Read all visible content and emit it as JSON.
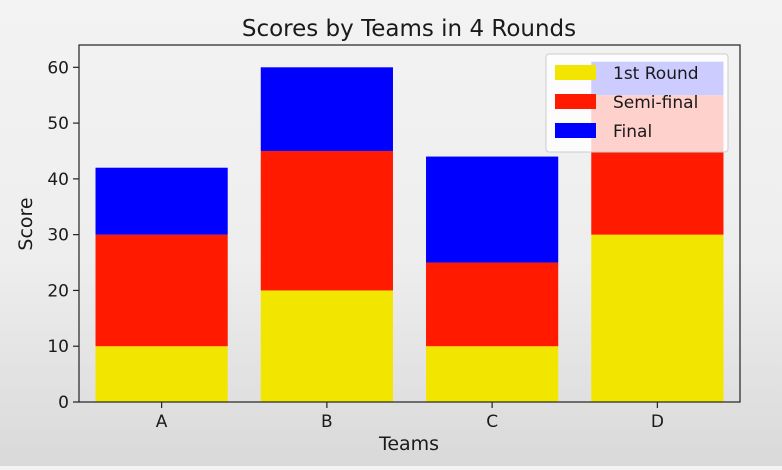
{
  "chart_data": {
    "type": "bar",
    "stacked": true,
    "title": "Scores by Teams in 4 Rounds",
    "xlabel": "Teams",
    "ylabel": "Score",
    "categories": [
      "A",
      "B",
      "C",
      "D"
    ],
    "series": [
      {
        "name": "1st Round",
        "color": "#f2e600",
        "values": [
          10,
          20,
          10,
          30
        ]
      },
      {
        "name": "Semi-final",
        "color": "#ff1a00",
        "values": [
          20,
          25,
          15,
          25
        ]
      },
      {
        "name": "Final",
        "color": "#0000ff",
        "values": [
          12,
          15,
          19,
          6
        ]
      }
    ],
    "ylim": [
      0,
      64
    ],
    "yticks": [
      0,
      10,
      20,
      30,
      40,
      50,
      60
    ],
    "grid": false,
    "legend_position": "top-right"
  }
}
